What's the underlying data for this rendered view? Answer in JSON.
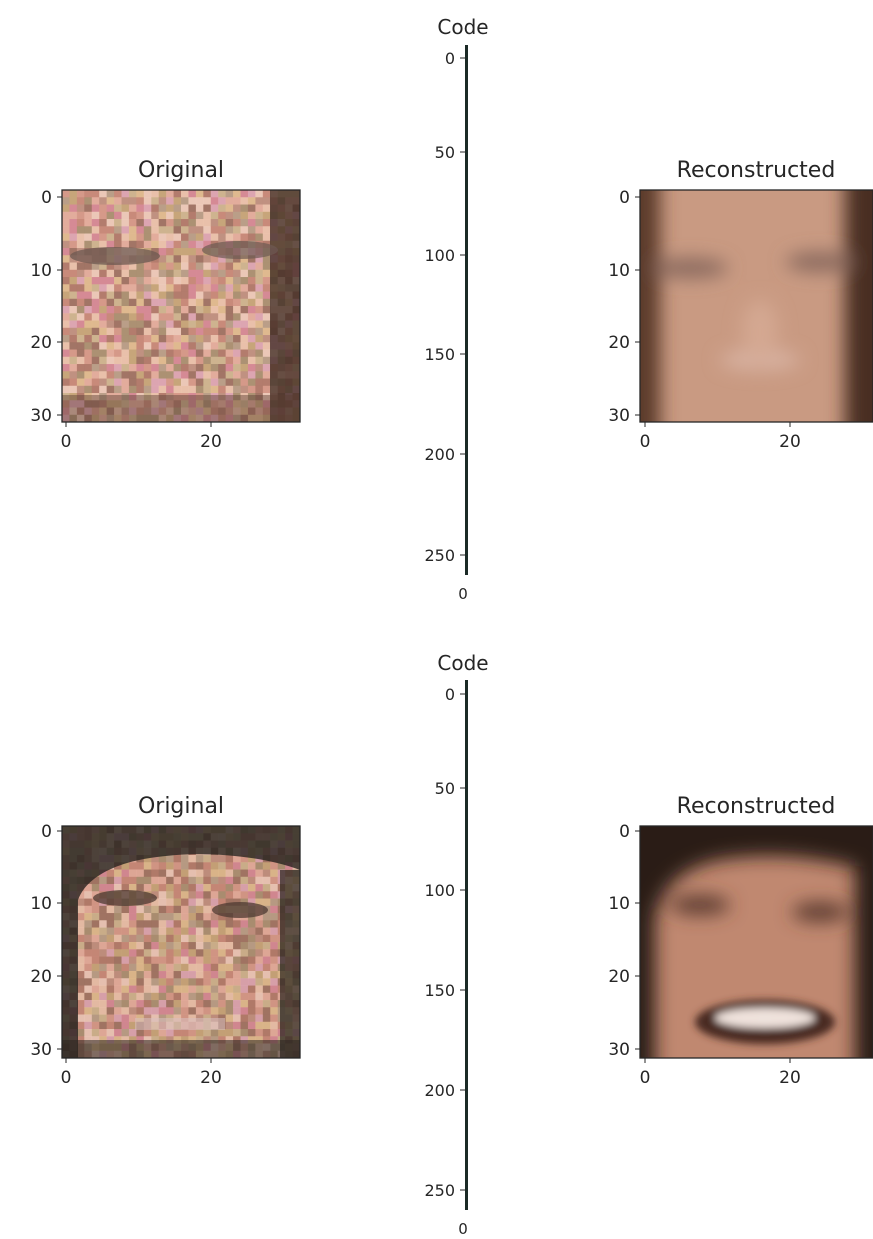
{
  "chart_data": [
    {
      "type": "image",
      "title": "Original",
      "image_content": "noisy pixelated face, 32x32 color image, light skin, dark hair at right edge",
      "xticks": [
        0,
        20
      ],
      "yticks": [
        0,
        10,
        20,
        30
      ],
      "xlim": [
        -0.5,
        31.5
      ],
      "ylim": [
        31.5,
        -0.5
      ]
    },
    {
      "type": "image",
      "title": "Code",
      "image_content": "encoded code vector shown as a single-column image",
      "xticks": [
        0
      ],
      "yticks": [
        0,
        50,
        100,
        150,
        200,
        250
      ],
      "ylim": [
        255.5,
        -0.5
      ]
    },
    {
      "type": "image",
      "title": "Reconstructed",
      "image_content": "smooth blurry reconstruction of the face",
      "xticks": [
        0,
        20
      ],
      "yticks": [
        0,
        10,
        20,
        30
      ],
      "xlim": [
        -0.5,
        31.5
      ],
      "ylim": [
        31.5,
        -0.5
      ]
    },
    {
      "type": "image",
      "title": "Original",
      "image_content": "noisy pixelated face, dark hair and background, open smiling mouth",
      "xticks": [
        0,
        20
      ],
      "yticks": [
        0,
        10,
        20,
        30
      ],
      "xlim": [
        -0.5,
        31.5
      ],
      "ylim": [
        31.5,
        -0.5
      ]
    },
    {
      "type": "image",
      "title": "Code",
      "image_content": "encoded code vector shown as a single-column image",
      "xticks": [
        0
      ],
      "yticks": [
        0,
        50,
        100,
        150,
        200,
        250
      ],
      "ylim": [
        255.5,
        -0.5
      ]
    },
    {
      "type": "image",
      "title": "Reconstructed",
      "image_content": "smooth blurry reconstruction of smiling face with dark hair",
      "xticks": [
        0,
        20
      ],
      "yticks": [
        0,
        10,
        20,
        30
      ],
      "xlim": [
        -0.5,
        31.5
      ],
      "ylim": [
        31.5,
        -0.5
      ]
    }
  ]
}
